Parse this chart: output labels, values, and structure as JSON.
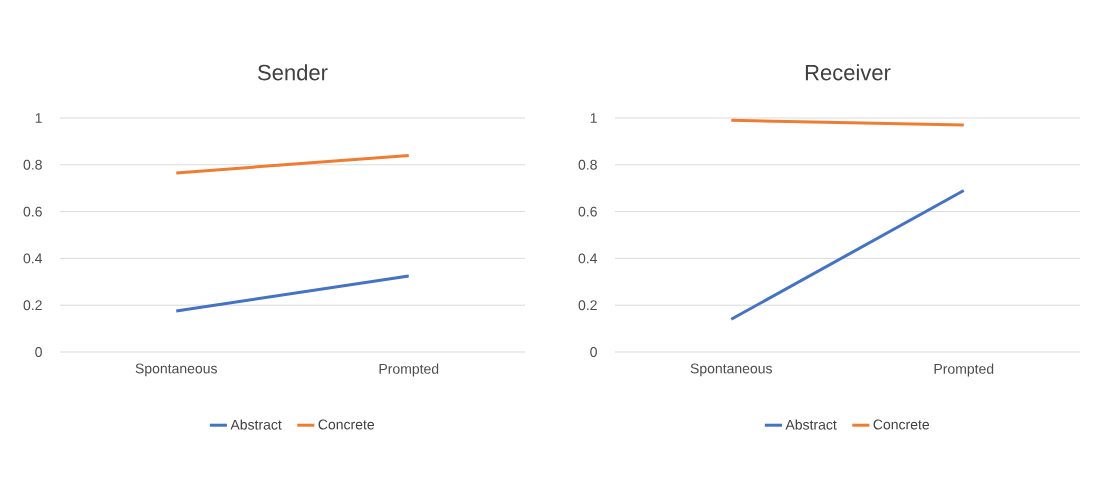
{
  "chart_data": [
    {
      "type": "line",
      "title": "Sender",
      "categories": [
        "Spontaneous",
        "Prompted"
      ],
      "series": [
        {
          "name": "Abstract",
          "color": "#4472c4",
          "values": [
            0.175,
            0.325
          ]
        },
        {
          "name": "Concrete",
          "color": "#ed7d31",
          "values": [
            0.765,
            0.84
          ]
        }
      ],
      "ylim": [
        0,
        1
      ],
      "yticks": [
        0,
        0.2,
        0.4,
        0.6,
        0.8,
        1
      ],
      "grid": "y",
      "legend": "bottom"
    },
    {
      "type": "line",
      "title": "Receiver",
      "categories": [
        "Spontaneous",
        "Prompted"
      ],
      "series": [
        {
          "name": "Abstract",
          "color": "#4472c4",
          "values": [
            0.14,
            0.69
          ]
        },
        {
          "name": "Concrete",
          "color": "#ed7d31",
          "values": [
            0.99,
            0.97
          ]
        }
      ],
      "ylim": [
        0,
        1
      ],
      "yticks": [
        0,
        0.2,
        0.4,
        0.6,
        0.8,
        1
      ],
      "grid": "y",
      "legend": "bottom"
    }
  ]
}
